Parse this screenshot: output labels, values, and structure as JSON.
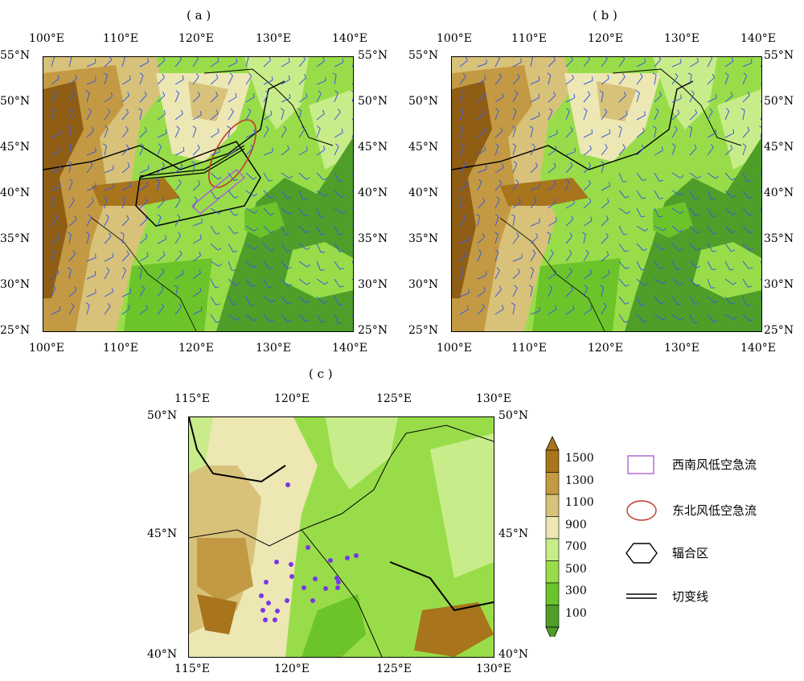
{
  "panels": [
    {
      "id": "a",
      "label": "( a )",
      "lon_ticks": [
        "100°E",
        "110°E",
        "120°E",
        "130°E",
        "140°E"
      ],
      "lat_ticks": [
        "55°N",
        "50°N",
        "45°N",
        "40°N",
        "35°N",
        "30°N",
        "25°N"
      ]
    },
    {
      "id": "b",
      "label": "( b )",
      "lon_ticks": [
        "100°E",
        "110°E",
        "120°E",
        "130°E",
        "140°E"
      ],
      "lat_ticks": [
        "55°N",
        "50°N",
        "45°N",
        "40°N",
        "35°N",
        "30°N",
        "25°N"
      ]
    },
    {
      "id": "c",
      "label": "( c )",
      "lon_ticks": [
        "115°E",
        "120°E",
        "125°E",
        "130°E"
      ],
      "lat_ticks": [
        "50°N",
        "45°N",
        "40°N"
      ]
    }
  ],
  "colorbar": {
    "levels": [
      "1500",
      "1300",
      "1100",
      "900",
      "700",
      "500",
      "300",
      "100"
    ],
    "colors": [
      "#a8741c",
      "#c39a43",
      "#d8c27a",
      "#ede7b4",
      "#c9ec8a",
      "#98dd49",
      "#6cc42a",
      "#4f9e2a"
    ]
  },
  "legend": [
    {
      "label": "西南风低空急流",
      "symbol": "purple-rectangle",
      "color": "#b15fd6"
    },
    {
      "label": "东北风低空急流",
      "symbol": "red-ellipse",
      "color": "#c0392b"
    },
    {
      "label": "辐合区",
      "symbol": "black-hexagon",
      "color": "#000000"
    },
    {
      "label": "切变线",
      "symbol": "double-line",
      "color": "#000000"
    }
  ],
  "stations_color": "#7b35e8",
  "wind_barb_color": "#3b5bdb",
  "terrain_colors": {
    "sea": "#4f9e2a",
    "low": "#98dd49",
    "mid": "#ede7b4",
    "high": "#c39a43",
    "peak": "#8f5e14"
  }
}
